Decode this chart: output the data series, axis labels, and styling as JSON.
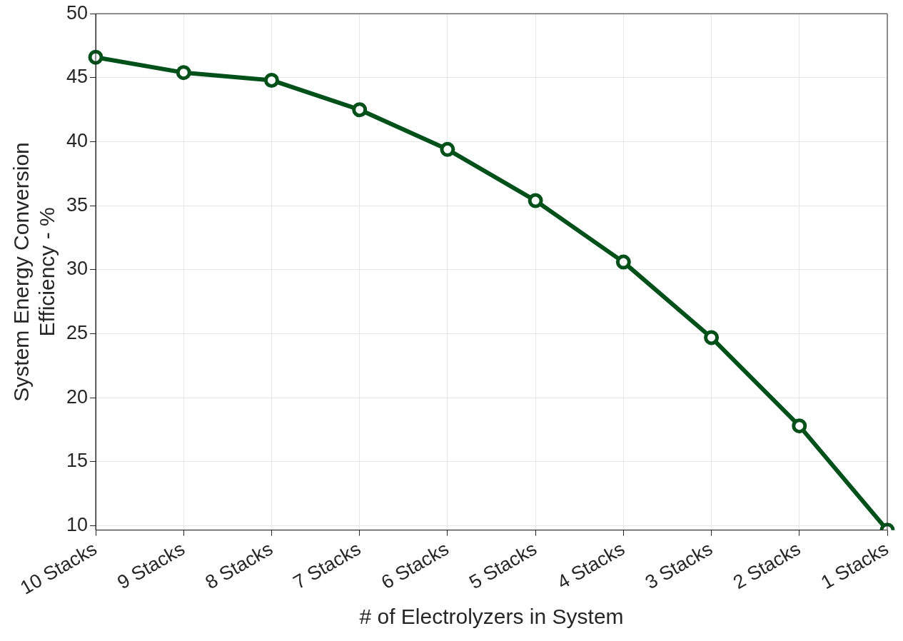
{
  "chart_data": {
    "type": "line",
    "xlabel": "# of Electrolyzers in System",
    "ylabel": "System Energy Conversion\nEfficiency - %",
    "categories": [
      "10 Stacks",
      "9 Stacks",
      "8 Stacks",
      "7 Stacks",
      "6 Stacks",
      "5 Stacks",
      "4 Stacks",
      "3 Stacks",
      "2 Stacks",
      "1 Stacks"
    ],
    "series": [
      {
        "color": "#00501a",
        "values": [
          46.6,
          45.4,
          44.8,
          42.5,
          39.4,
          35.4,
          30.6,
          24.7,
          17.8,
          9.66
        ]
      }
    ],
    "ylim": [
      9.66,
      50
    ],
    "yticks": [
      10,
      15,
      20,
      25,
      30,
      35,
      40,
      45,
      50
    ],
    "grid": true,
    "marker": "circle",
    "line_style": "solid",
    "legend": false
  }
}
